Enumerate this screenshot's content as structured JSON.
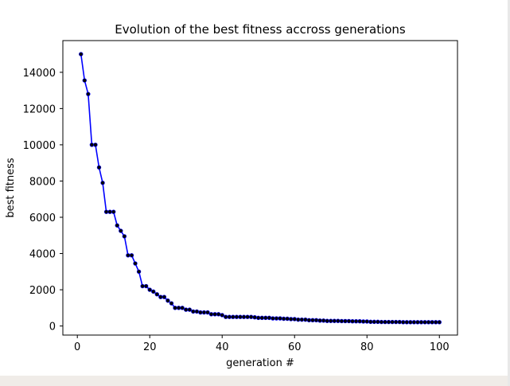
{
  "chart_data": {
    "type": "line",
    "title": "Evolution of the best fitness accross generations",
    "xlabel": "generation #",
    "ylabel": "best fitness",
    "xlim": [
      -4,
      105
    ],
    "ylim": [
      -500,
      15750
    ],
    "xticks": [
      0,
      20,
      40,
      60,
      80,
      100
    ],
    "yticks": [
      0,
      2000,
      4000,
      6000,
      8000,
      10000,
      12000,
      14000
    ],
    "grid": false,
    "legend": "none",
    "line_color": "#0000ff",
    "marker_color": "#000000",
    "series": [
      {
        "x": [
          1,
          2,
          3,
          4,
          5,
          6,
          7,
          8,
          9,
          10,
          11,
          12,
          13,
          14,
          15,
          16,
          17,
          18,
          19,
          20,
          21,
          22,
          23,
          24,
          25,
          26,
          27,
          28,
          29,
          30,
          31,
          32,
          33,
          34,
          35,
          36,
          37,
          38,
          39,
          40,
          41,
          42,
          43,
          44,
          45,
          46,
          47,
          48,
          49,
          50,
          51,
          52,
          53,
          54,
          55,
          56,
          57,
          58,
          59,
          60,
          61,
          62,
          63,
          64,
          65,
          66,
          67,
          68,
          69,
          70,
          71,
          72,
          73,
          74,
          75,
          76,
          77,
          78,
          79,
          80,
          81,
          82,
          83,
          84,
          85,
          86,
          87,
          88,
          89,
          90,
          91,
          92,
          93,
          94,
          95,
          96,
          97,
          98,
          99,
          100
        ],
        "y": [
          15000,
          13550,
          12800,
          10000,
          10000,
          8750,
          7900,
          6300,
          6300,
          6300,
          5550,
          5250,
          4950,
          3900,
          3900,
          3450,
          3000,
          2200,
          2200,
          2000,
          1900,
          1750,
          1600,
          1600,
          1400,
          1250,
          1000,
          1000,
          1000,
          900,
          900,
          800,
          800,
          750,
          750,
          750,
          650,
          650,
          650,
          600,
          500,
          500,
          500,
          500,
          500,
          500,
          500,
          500,
          480,
          450,
          450,
          450,
          450,
          420,
          420,
          420,
          400,
          400,
          380,
          380,
          350,
          350,
          350,
          320,
          320,
          320,
          300,
          300,
          280,
          280,
          280,
          280,
          270,
          270,
          270,
          260,
          260,
          260,
          250,
          250,
          230,
          230,
          230,
          220,
          220,
          220,
          220,
          220,
          220,
          210,
          210,
          210,
          210,
          210,
          210,
          210,
          210,
          210,
          210,
          210
        ]
      }
    ]
  }
}
